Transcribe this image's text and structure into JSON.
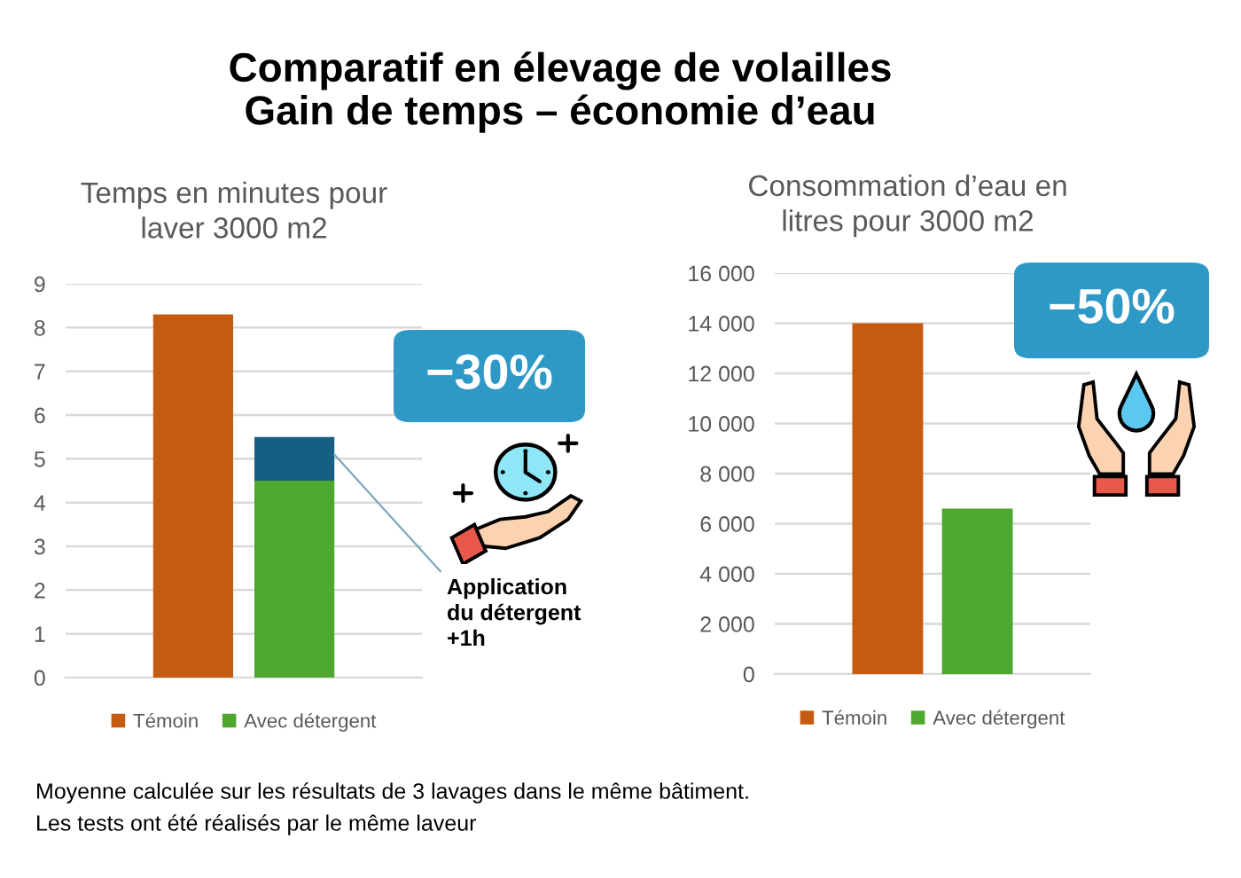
{
  "chart_data": [
    {
      "type": "other",
      "title": "Comparatif en élevage de volailles\nGain de temps – économie d’eau",
      "annotations": [
        "Moyenne calculée sur les résultats de 3 lavages dans le même bâtiment.",
        "Les tests ont été réalisés par le même laveur"
      ]
    },
    {
      "type": "bar",
      "title": "Temps en minutes pour\nlaver 3000 m2",
      "categories": [
        null,
        null
      ],
      "stacked": true,
      "series": [
        {
          "name": "Témoin",
          "color": "#c55a11",
          "values": [
            8.3,
            null
          ]
        },
        {
          "name": "Avec détergent",
          "color": "#4ea72e",
          "values": [
            null,
            4.5
          ]
        },
        {
          "color": "#156082",
          "values": [
            null,
            1.0
          ]
        }
      ],
      "ylim": [
        0,
        9
      ],
      "yticks": [
        0,
        1,
        2,
        3,
        4,
        5,
        6,
        7,
        8,
        9
      ],
      "grid": "y",
      "legend": "bottom",
      "annotations": [
        "−30%",
        "Application\ndu détergent\n+1h"
      ]
    },
    {
      "type": "bar",
      "title": "Consommation d’eau en\nlitres pour 3000 m2",
      "categories": [
        null,
        null
      ],
      "series": [
        {
          "name": "Témoin",
          "color": "#c55a11",
          "values": [
            14000,
            null
          ]
        },
        {
          "name": "Avec détergent",
          "color": "#4ea72e",
          "values": [
            null,
            6600
          ]
        }
      ],
      "ylim": [
        0,
        16000
      ],
      "yticks": [
        0,
        {
          "value": 2000,
          "label": "2 000"
        },
        {
          "value": 4000,
          "label": "4 000"
        },
        {
          "value": 6000,
          "label": "6 000"
        },
        {
          "value": 8000,
          "label": "8 000"
        },
        {
          "value": 10000,
          "label": "10 000"
        },
        {
          "value": 12000,
          "label": "12 000"
        },
        {
          "value": 14000,
          "label": "14 000"
        },
        {
          "value": 16000,
          "label": "16 000"
        }
      ],
      "grid": "y",
      "legend": "bottom",
      "annotations": [
        "−50%"
      ]
    }
  ]
}
